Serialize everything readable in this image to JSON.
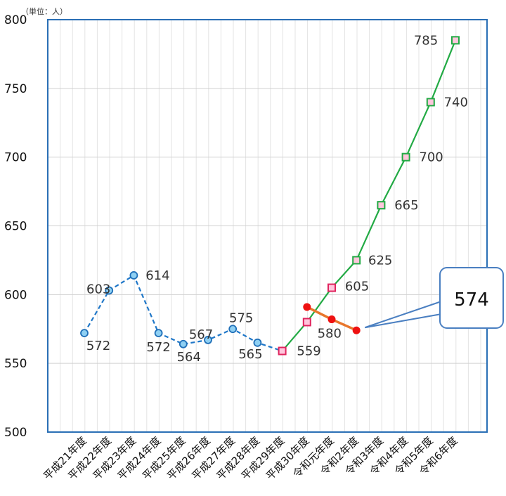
{
  "chart_data": {
    "type": "line",
    "unit_label": "（単位：人）",
    "categories": [
      "平成21年度",
      "平成22年度",
      "平成23年度",
      "平成24年度",
      "平成25年度",
      "平成26年度",
      "平成27年度",
      "平成28年度",
      "平成29年度",
      "平成30年度",
      "令和元年度",
      "令和2年度",
      "令和3年度",
      "令和4年度",
      "令和5年度",
      "令和6年度"
    ],
    "ylim": [
      500,
      800
    ],
    "yticks": [
      500,
      550,
      600,
      650,
      700,
      750,
      800
    ],
    "grid": true,
    "series": [
      {
        "color": "#1f77c8",
        "style": "dashed",
        "marker": "circle",
        "points": [
          {
            "x": "平成21年度",
            "y": 572,
            "label": "572"
          },
          {
            "x": "平成22年度",
            "y": 603,
            "label": "603"
          },
          {
            "x": "平成23年度",
            "y": 614,
            "label": "614"
          },
          {
            "x": "平成24年度",
            "y": 572,
            "label": "572"
          },
          {
            "x": "平成25年度",
            "y": 564,
            "label": "564"
          },
          {
            "x": "平成26年度",
            "y": 567,
            "label": "567"
          },
          {
            "x": "平成27年度",
            "y": 575,
            "label": "575"
          },
          {
            "x": "平成28年度",
            "y": 565,
            "label": "565"
          },
          {
            "x": "平成29年度",
            "y": 559,
            "label": "559"
          }
        ]
      },
      {
        "color": "#22aa44",
        "style": "solid",
        "marker": "square",
        "points": [
          {
            "x": "平成29年度",
            "y": 559,
            "label": ""
          },
          {
            "x": "平成30年度",
            "y": 580,
            "label": "580"
          },
          {
            "x": "令和元年度",
            "y": 605,
            "label": "605"
          },
          {
            "x": "令和2年度",
            "y": 625,
            "label": "625"
          },
          {
            "x": "令和3年度",
            "y": 665,
            "label": "665"
          },
          {
            "x": "令和4年度",
            "y": 700,
            "label": "700"
          },
          {
            "x": "令和5年度",
            "y": 740,
            "label": "740"
          },
          {
            "x": "令和6年度",
            "y": 785,
            "label": "785"
          }
        ]
      },
      {
        "color": "#e8762c",
        "style": "solid",
        "marker": "red-dot",
        "points": [
          {
            "x": "平成30年度",
            "y": 591
          },
          {
            "x": "令和元年度",
            "y": 582
          },
          {
            "x": "令和2年度",
            "y": 574
          }
        ]
      }
    ],
    "callout": {
      "text": "574",
      "target": {
        "x": "令和2年度",
        "y": 574
      }
    }
  }
}
